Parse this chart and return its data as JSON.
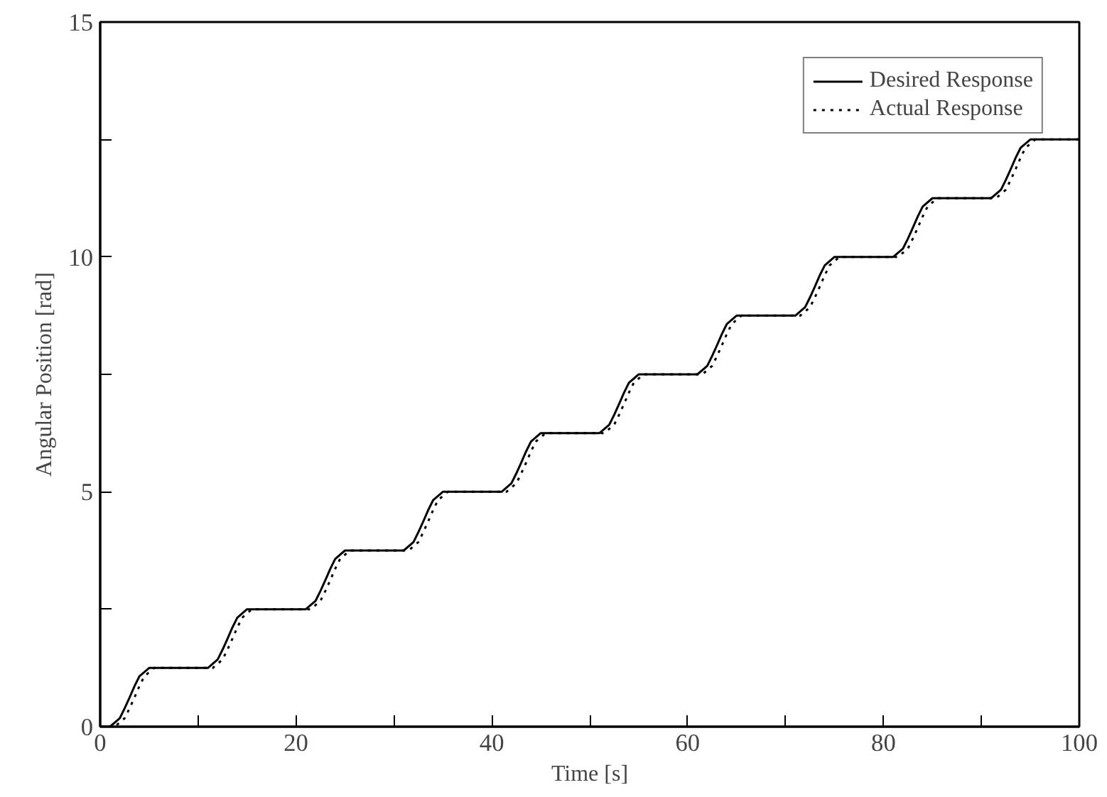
{
  "chart_data": {
    "type": "line",
    "xlabel": "Time [s]",
    "ylabel": "Angular Position [rad]",
    "xlim": [
      0,
      100
    ],
    "ylim": [
      0,
      15
    ],
    "xticks": [
      0,
      {
        "value": 10,
        "label": null
      },
      20,
      {
        "value": 30,
        "label": null
      },
      40,
      {
        "value": 50,
        "label": null
      },
      60,
      {
        "value": 70,
        "label": null
      },
      80,
      {
        "value": 90,
        "label": null
      },
      100
    ],
    "yticks": [
      0,
      {
        "value": 2.5,
        "label": null
      },
      5,
      {
        "value": 7.5,
        "label": null
      },
      10,
      {
        "value": 12.5,
        "label": null
      },
      15
    ],
    "grid": false,
    "legend": "top right",
    "marker": "none",
    "series": [
      {
        "name": "Desired Response",
        "color": "#000000",
        "line_style": "solid",
        "x": [
          0,
          1,
          2,
          2.5,
          3,
          3.5,
          4,
          5,
          11,
          12,
          12.5,
          13,
          13.5,
          14,
          15,
          21,
          22,
          22.5,
          23,
          23.5,
          24,
          25,
          31,
          32,
          32.5,
          33,
          33.5,
          34,
          35,
          41,
          42,
          42.5,
          43,
          43.5,
          44,
          45,
          51,
          52,
          52.5,
          53,
          53.5,
          54,
          55,
          61,
          62,
          62.5,
          63,
          63.5,
          64,
          65,
          71,
          72,
          72.5,
          73,
          73.5,
          74,
          75,
          81,
          82,
          82.5,
          83,
          83.5,
          84,
          85,
          91,
          92,
          92.5,
          93,
          93.5,
          94,
          95,
          100
        ],
        "values": [
          0,
          0,
          0.18,
          0.39,
          0.62,
          0.86,
          1.07,
          1.25,
          1.25,
          1.43,
          1.64,
          1.87,
          2.11,
          2.32,
          2.5,
          2.5,
          2.68,
          2.89,
          3.12,
          3.36,
          3.57,
          3.75,
          3.75,
          3.93,
          4.14,
          4.37,
          4.61,
          4.82,
          5,
          5,
          5.18,
          5.39,
          5.62,
          5.86,
          6.07,
          6.25,
          6.25,
          6.43,
          6.64,
          6.87,
          7.11,
          7.32,
          7.5,
          7.5,
          7.68,
          7.89,
          8.12,
          8.36,
          8.57,
          8.75,
          8.75,
          8.93,
          9.14,
          9.37,
          9.61,
          9.82,
          10,
          10,
          10.18,
          10.39,
          10.62,
          10.86,
          11.07,
          11.25,
          11.25,
          11.43,
          11.64,
          11.87,
          12.11,
          12.32,
          12.5,
          12.5
        ]
      },
      {
        "name": "Actual Response",
        "color": "#000000",
        "line_style": "dotted",
        "x": [
          0,
          1.5,
          2.5,
          3,
          3.5,
          4,
          4.5,
          5.5,
          11.5,
          12.5,
          13,
          13.5,
          14,
          14.5,
          15.5,
          21.5,
          22.5,
          23,
          23.5,
          24,
          24.5,
          25.5,
          31.5,
          32.5,
          33,
          33.5,
          34,
          34.5,
          35.5,
          41.5,
          42.5,
          43,
          43.5,
          44,
          44.5,
          45.5,
          51.5,
          52.5,
          53,
          53.5,
          54,
          54.5,
          55.5,
          61.5,
          62.5,
          63,
          63.5,
          64,
          64.5,
          65.5,
          71.5,
          72.5,
          73,
          73.5,
          74,
          74.5,
          75.5,
          81.5,
          82.5,
          83,
          83.5,
          84,
          84.5,
          85.5,
          91.5,
          92.5,
          93,
          93.5,
          94,
          94.5,
          95.5,
          100
        ],
        "values": [
          0,
          0,
          0.18,
          0.39,
          0.62,
          0.86,
          1.07,
          1.25,
          1.25,
          1.43,
          1.64,
          1.87,
          2.11,
          2.32,
          2.5,
          2.5,
          2.68,
          2.89,
          3.12,
          3.36,
          3.57,
          3.75,
          3.75,
          3.93,
          4.14,
          4.37,
          4.61,
          4.82,
          5,
          5,
          5.18,
          5.39,
          5.62,
          5.86,
          6.07,
          6.25,
          6.25,
          6.43,
          6.64,
          6.87,
          7.11,
          7.32,
          7.5,
          7.5,
          7.68,
          7.89,
          8.12,
          8.36,
          8.57,
          8.75,
          8.75,
          8.93,
          9.14,
          9.37,
          9.61,
          9.82,
          10,
          10,
          10.18,
          10.39,
          10.62,
          10.86,
          11.07,
          11.25,
          11.25,
          11.43,
          11.64,
          11.87,
          12.11,
          12.32,
          12.5,
          12.5
        ]
      }
    ]
  }
}
